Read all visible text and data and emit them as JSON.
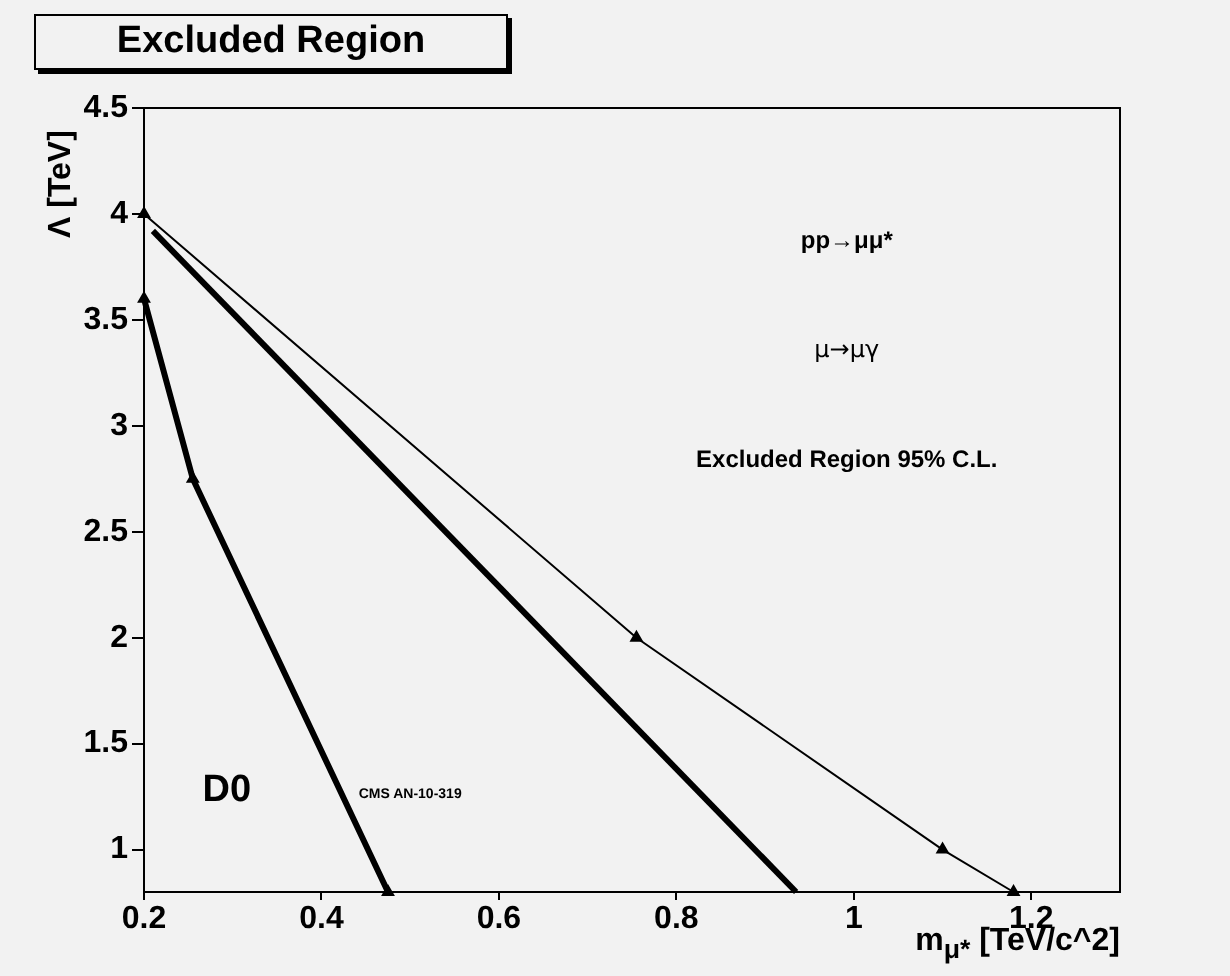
{
  "chart_data": {
    "type": "line",
    "title": "Excluded Region",
    "xlabel": "m$_{μ*}$ [TeV/c^2]",
    "ylabel": "Λ [TeV]",
    "annotations": [
      "pp→μμ*",
      "μ→μγ",
      "Excluded Region 95% C.L.",
      "D0",
      "CMS AN-10-319"
    ],
    "xlim": [
      0.2,
      1.3
    ],
    "ylim": [
      0.8,
      4.5
    ],
    "xticks": [
      0.2,
      0.4,
      0.6,
      0.8,
      1,
      1.2
    ],
    "yticks": [
      1,
      1.5,
      2,
      2.5,
      3,
      3.5,
      4,
      4.5
    ],
    "grid": false,
    "legend": false,
    "series": [
      {
        "color": "#000000",
        "marker": "triangle",
        "x": [
          0.2,
          0.755,
          1.1,
          1.18
        ],
        "values": [
          4.0,
          2.0,
          1.0,
          0.8
        ]
      },
      {
        "color": "#000000",
        "marker": "none",
        "x": [
          0.21,
          0.935
        ],
        "values": [
          3.92,
          0.8
        ]
      },
      {
        "color": "#000000",
        "marker": "triangle",
        "x": [
          0.2,
          0.255,
          0.475
        ],
        "values": [
          3.6,
          2.75,
          0.8
        ]
      }
    ]
  }
}
